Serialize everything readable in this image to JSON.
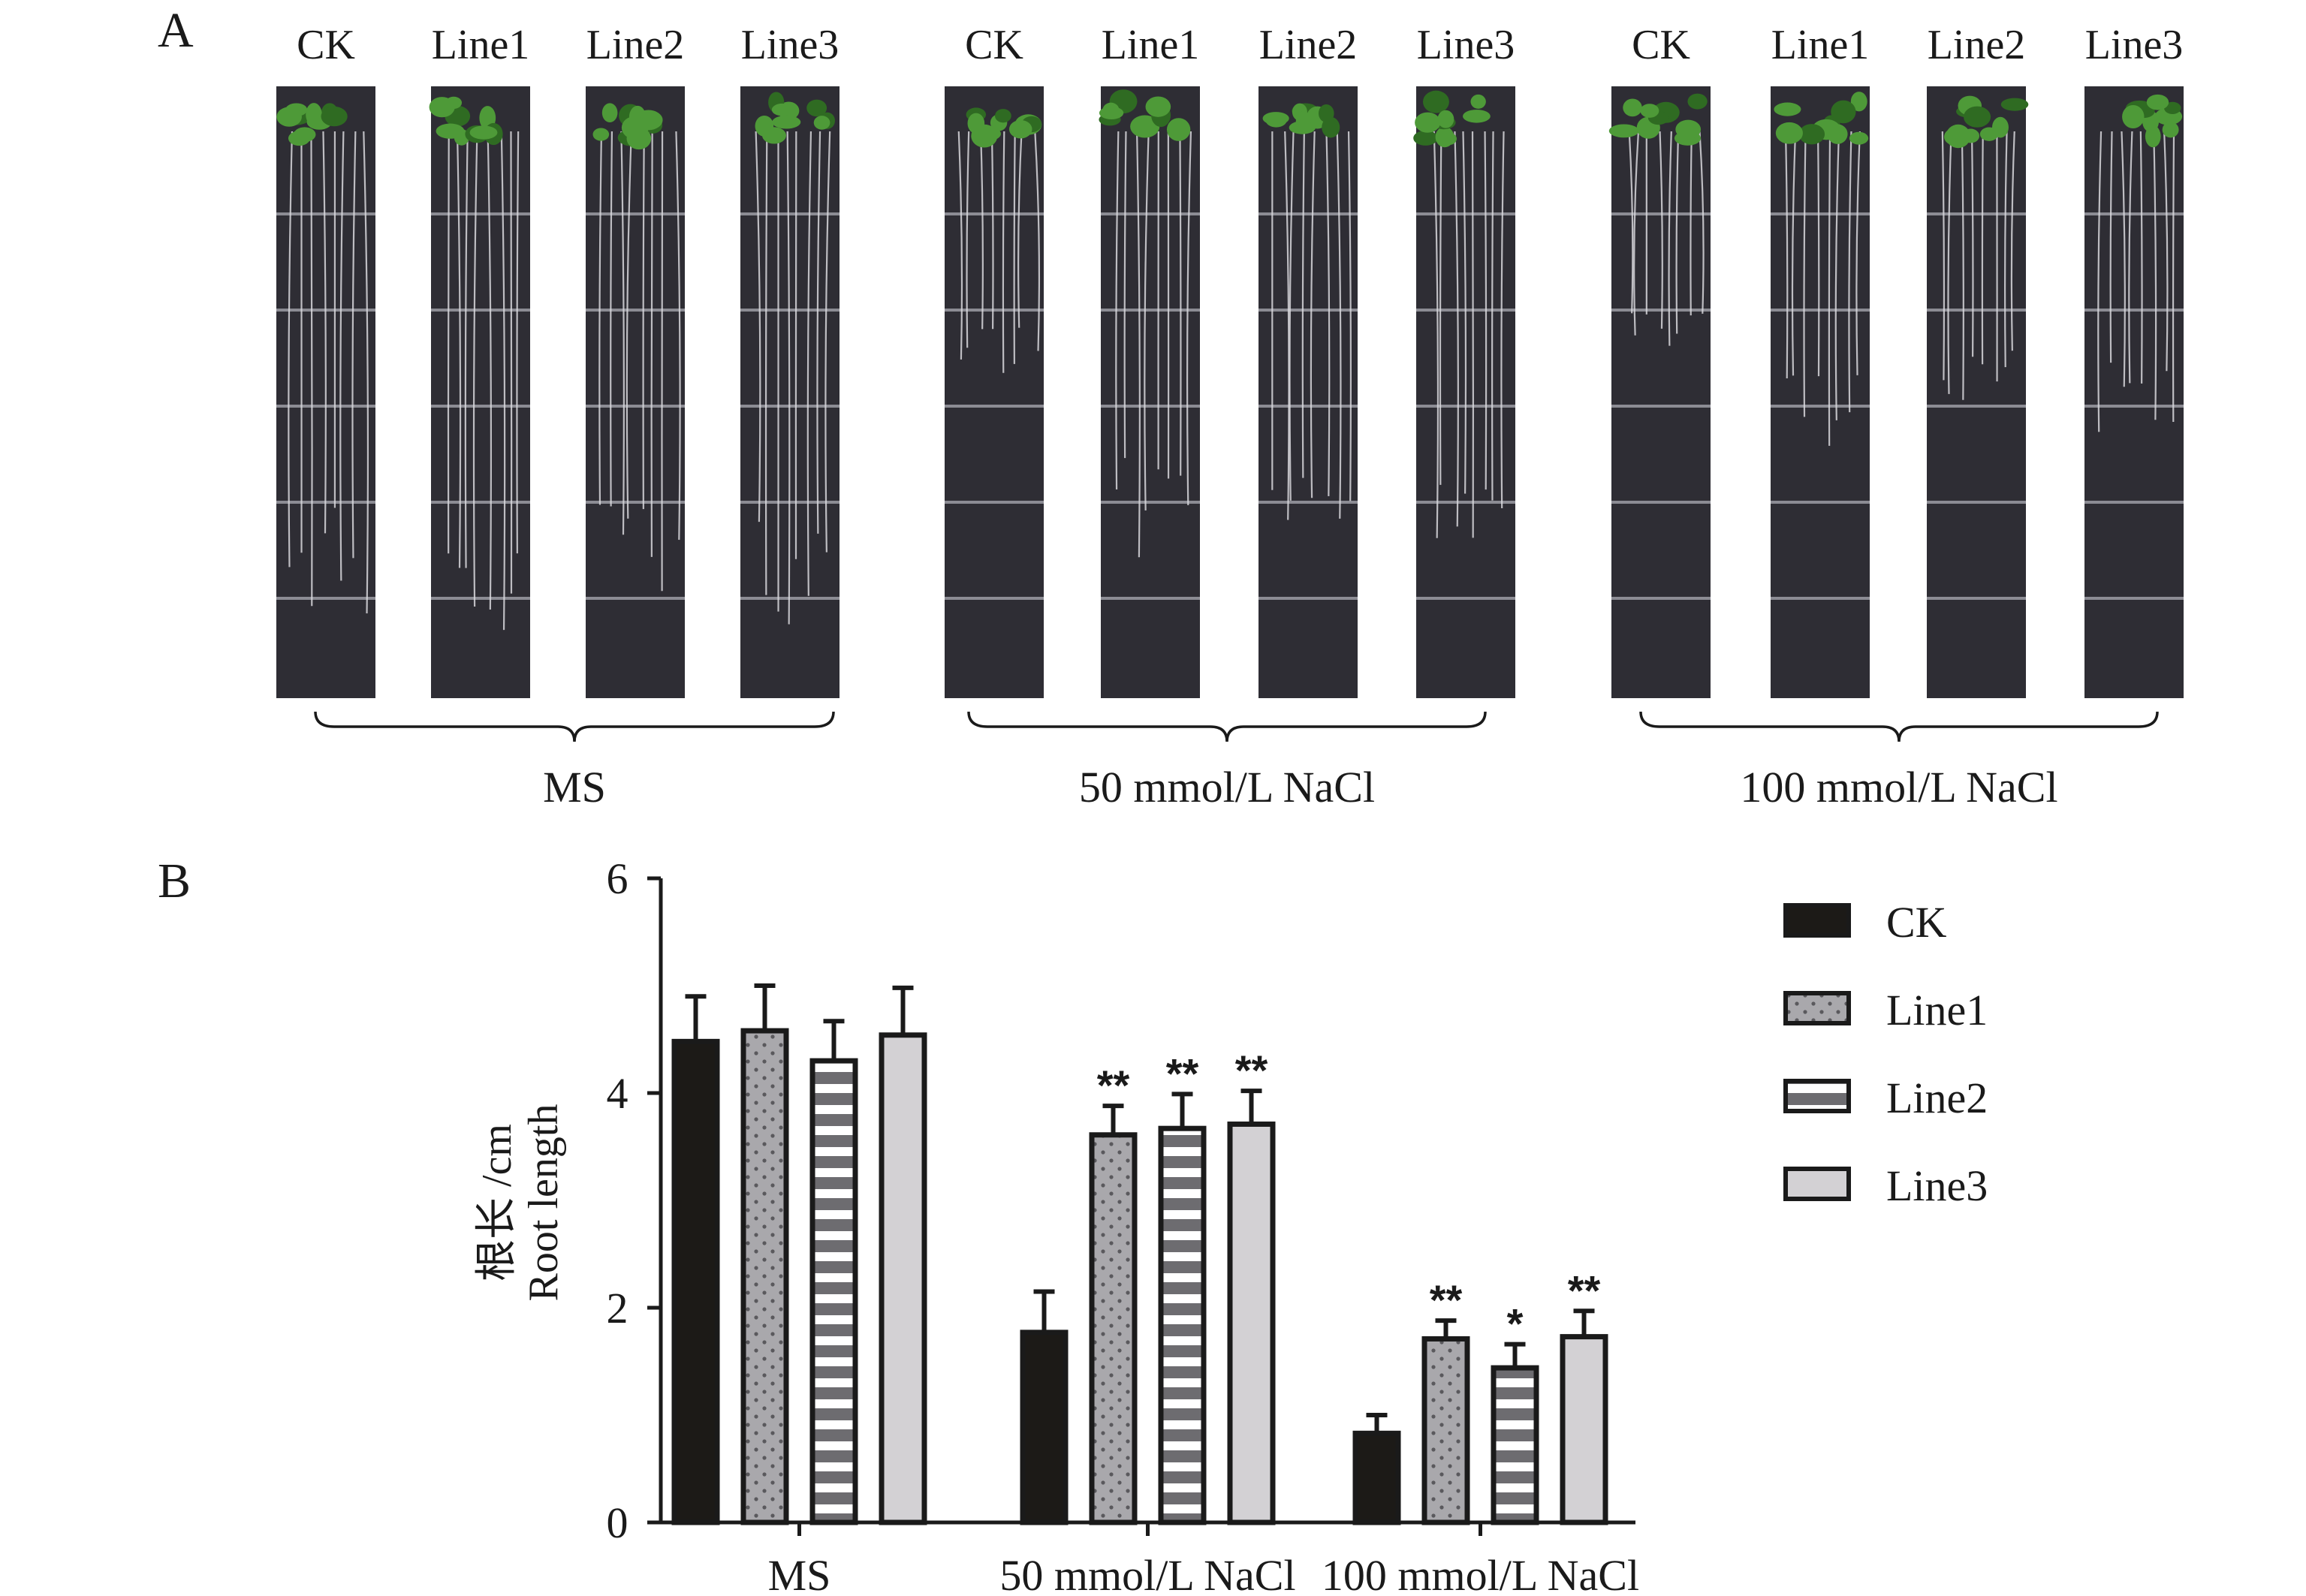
{
  "panel_a": {
    "label": "A",
    "groups": [
      {
        "label": "MS",
        "lines": [
          "CK",
          "Line1",
          "Line2",
          "Line3"
        ],
        "root_fraction": [
          0.8,
          0.83,
          0.8,
          0.83
        ]
      },
      {
        "label": "50 mmol/L NaCl",
        "lines": [
          "CK",
          "Line1",
          "Line2",
          "Line3"
        ],
        "root_fraction": [
          0.4,
          0.7,
          0.72,
          0.7
        ]
      },
      {
        "label": "100 mmol/L NaCl",
        "lines": [
          "CK",
          "Line1",
          "Line2",
          "Line3"
        ],
        "root_fraction": [
          0.36,
          0.52,
          0.46,
          0.5
        ]
      }
    ],
    "colors": {
      "plate": "#2e2d34",
      "plate_grid": "#8c8c94",
      "leaf": "#4e9a38",
      "leaf_dark": "#2f6b22",
      "root": "#d7d7dc"
    }
  },
  "panel_b": {
    "label": "B"
  },
  "chart_data": {
    "type": "bar",
    "categories": [
      "MS",
      "50 mmol/L NaCl",
      "100 mmol/L NaCl"
    ],
    "ylabel_cn": "根长 /cm",
    "ylabel_en": "Root length",
    "ylim": [
      0,
      6
    ],
    "yticks": [
      0,
      2,
      4,
      6
    ],
    "legend_position": "top-right",
    "series": [
      {
        "name": "CK",
        "values": [
          4.48,
          1.77,
          0.83
        ],
        "errors": [
          0.42,
          0.38,
          0.17
        ],
        "sig": [
          "",
          "",
          ""
        ],
        "color": "#1c1a17",
        "pattern": "solid"
      },
      {
        "name": "Line1",
        "values": [
          4.58,
          3.61,
          1.71
        ],
        "errors": [
          0.42,
          0.27,
          0.17
        ],
        "sig": [
          "",
          "**",
          "**"
        ],
        "color": "#a9a8ac",
        "pattern": "dots"
      },
      {
        "name": "Line2",
        "values": [
          4.3,
          3.67,
          1.44
        ],
        "errors": [
          0.37,
          0.32,
          0.22
        ],
        "sig": [
          "",
          "**",
          "*"
        ],
        "color": "#6d6c70",
        "pattern": "stripes"
      },
      {
        "name": "Line3",
        "values": [
          4.54,
          3.71,
          1.73
        ],
        "errors": [
          0.44,
          0.31,
          0.24
        ],
        "sig": [
          "",
          "**",
          "**"
        ],
        "color": "#d3d1d4",
        "pattern": "solid"
      }
    ]
  }
}
